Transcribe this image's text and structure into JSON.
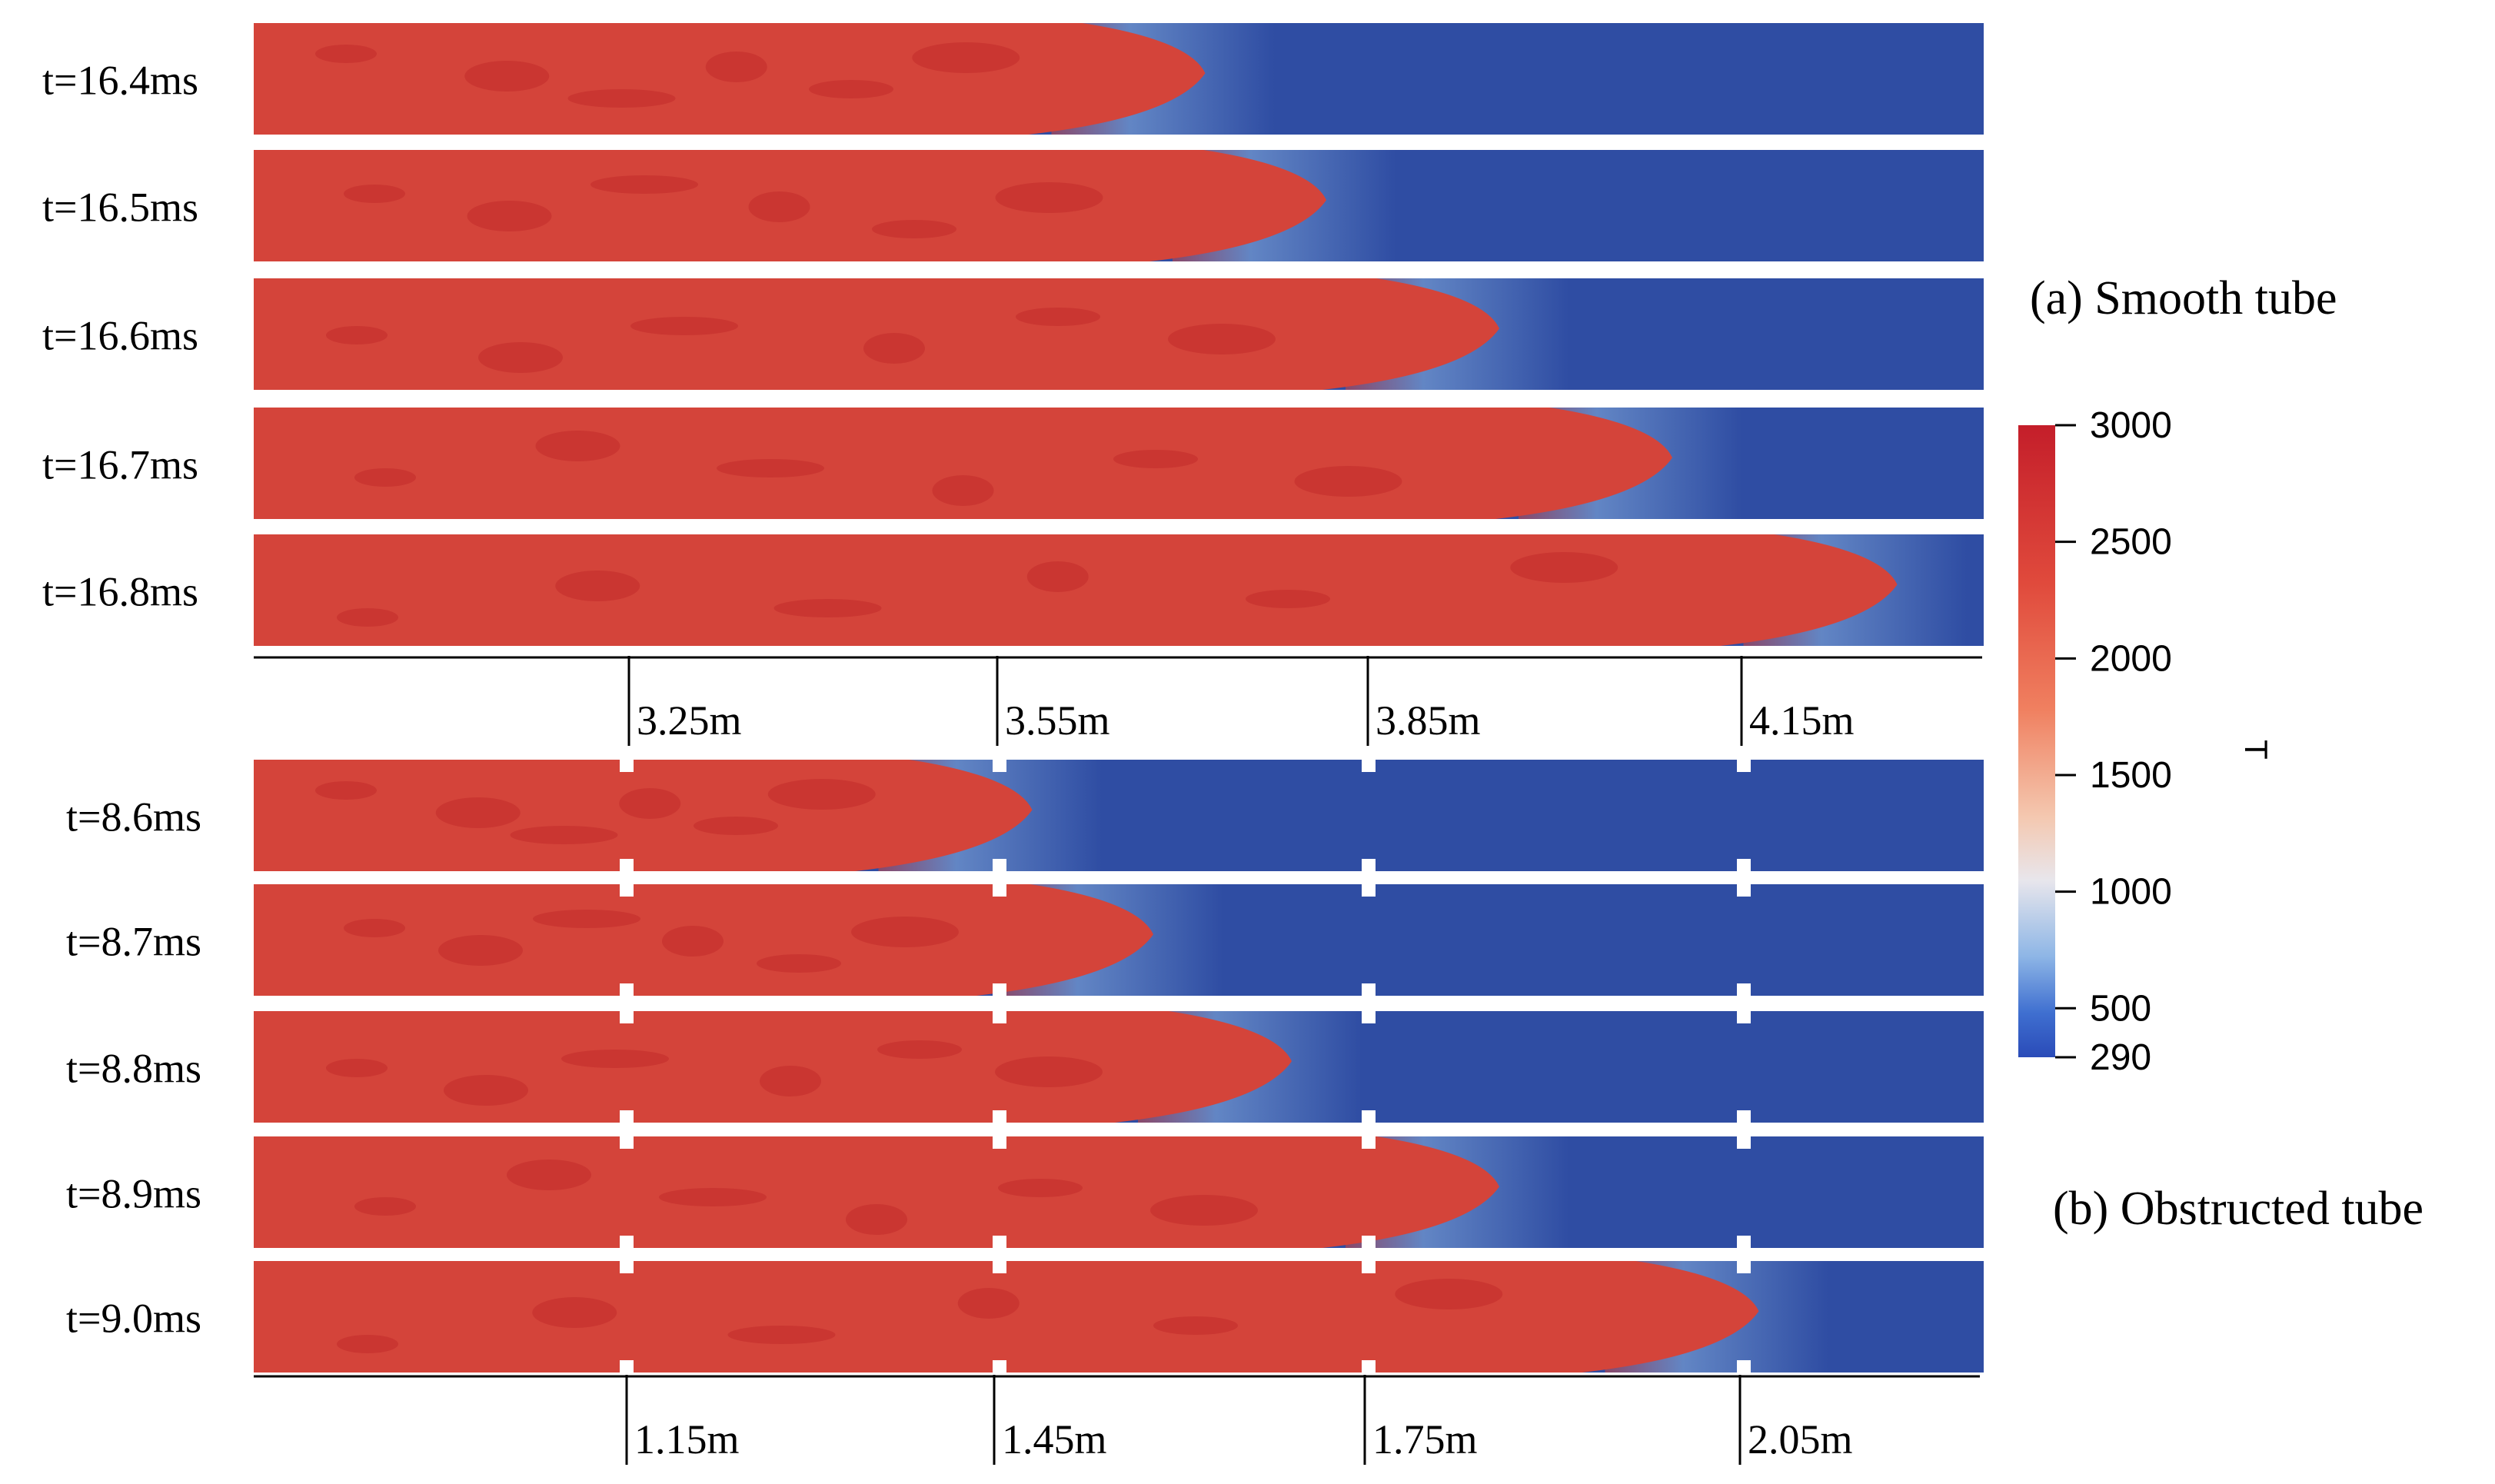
{
  "smooth_tube": {
    "caption": "(a) Smooth tube",
    "frames": [
      {
        "label": "t=16.4ms",
        "flame_front": 0.55
      },
      {
        "label": "t=16.5ms",
        "flame_front": 0.62
      },
      {
        "label": "t=16.6ms",
        "flame_front": 0.72
      },
      {
        "label": "t=16.7ms",
        "flame_front": 0.82
      },
      {
        "label": "t=16.8ms",
        "flame_front": 0.95
      }
    ],
    "axis_ticks": [
      "3.25m",
      "3.55m",
      "3.85m",
      "4.15m"
    ]
  },
  "obstructed_tube": {
    "caption": "(b) Obstructed tube",
    "frames": [
      {
        "label": "t=8.6ms",
        "flame_front": 0.45
      },
      {
        "label": "t=8.7ms",
        "flame_front": 0.52
      },
      {
        "label": "t=8.8ms",
        "flame_front": 0.6
      },
      {
        "label": "t=8.9ms",
        "flame_front": 0.72
      },
      {
        "label": "t=9.0ms",
        "flame_front": 0.87
      }
    ],
    "axis_ticks": [
      "1.15m",
      "1.45m",
      "1.75m",
      "2.05m"
    ]
  },
  "colorbar": {
    "variable": "T",
    "ticks": [
      "3000",
      "2500",
      "2000",
      "1500",
      "1000",
      "500",
      "290"
    ],
    "tick_values": [
      3000,
      2500,
      2000,
      1500,
      1000,
      500,
      290
    ],
    "range": [
      290,
      3000
    ]
  },
  "colors": {
    "hot": "#d4443a",
    "hot_dark": "#b81d22",
    "cold": "#2f4da3",
    "mix": "#8cb4e0"
  }
}
